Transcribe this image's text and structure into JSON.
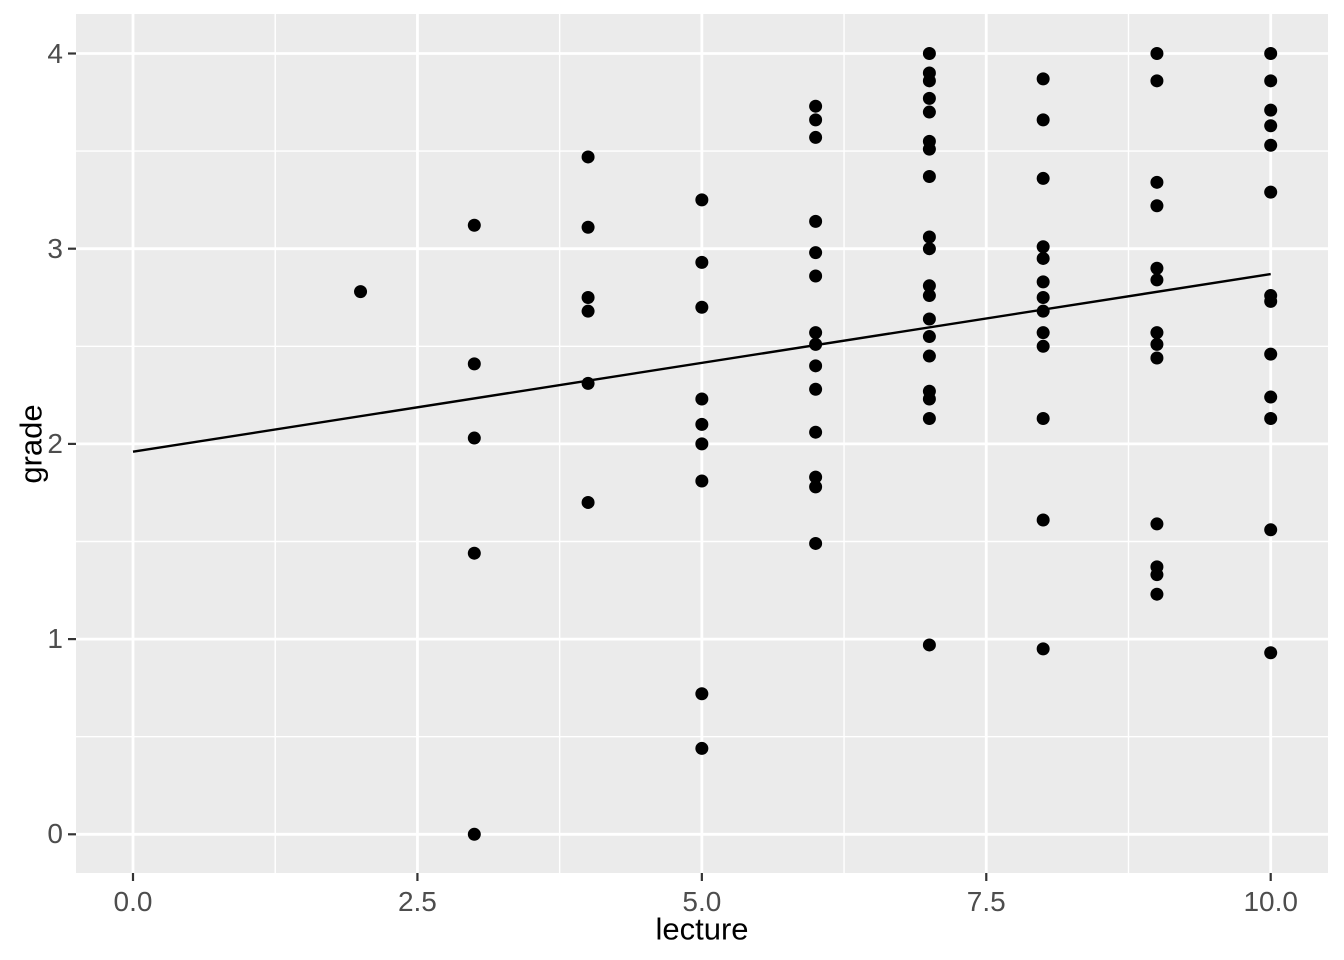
{
  "chart_data": {
    "type": "scatter",
    "title": "",
    "xlabel": "lecture",
    "ylabel": "grade",
    "xlim": [
      -0.5,
      10.5
    ],
    "ylim": [
      -0.2,
      4.2
    ],
    "grid": true,
    "legend": "none",
    "x_ticks": [
      0.0,
      2.5,
      5.0,
      7.5,
      10.0
    ],
    "x_tick_labels": [
      "0.0",
      "2.5",
      "5.0",
      "7.5",
      "10.0"
    ],
    "y_ticks": [
      0,
      1,
      2,
      3,
      4
    ],
    "y_tick_labels": [
      "0",
      "1",
      "2",
      "3",
      "4"
    ],
    "x_minor_gridlines": [
      1.25,
      3.75,
      6.25,
      8.75
    ],
    "y_minor_gridlines": [
      0.5,
      1.5,
      2.5,
      3.5
    ],
    "trend_line": {
      "x1": 0.0,
      "y1": 1.96,
      "x2": 10.0,
      "y2": 2.87
    },
    "points": [
      {
        "x": 2,
        "y": 2.78
      },
      {
        "x": 3,
        "y": 3.12
      },
      {
        "x": 3,
        "y": 2.41
      },
      {
        "x": 3,
        "y": 2.03
      },
      {
        "x": 3,
        "y": 1.44
      },
      {
        "x": 3,
        "y": 0.0
      },
      {
        "x": 4,
        "y": 3.47
      },
      {
        "x": 4,
        "y": 3.11
      },
      {
        "x": 4,
        "y": 2.75
      },
      {
        "x": 4,
        "y": 2.68
      },
      {
        "x": 4,
        "y": 2.31
      },
      {
        "x": 4,
        "y": 1.7
      },
      {
        "x": 5,
        "y": 3.25
      },
      {
        "x": 5,
        "y": 2.93
      },
      {
        "x": 5,
        "y": 2.7
      },
      {
        "x": 5,
        "y": 2.23
      },
      {
        "x": 5,
        "y": 2.1
      },
      {
        "x": 5,
        "y": 2.0
      },
      {
        "x": 5,
        "y": 1.81
      },
      {
        "x": 5,
        "y": 0.72
      },
      {
        "x": 5,
        "y": 0.44
      },
      {
        "x": 6,
        "y": 3.73
      },
      {
        "x": 6,
        "y": 3.66
      },
      {
        "x": 6,
        "y": 3.57
      },
      {
        "x": 6,
        "y": 3.14
      },
      {
        "x": 6,
        "y": 2.98
      },
      {
        "x": 6,
        "y": 2.86
      },
      {
        "x": 6,
        "y": 2.57
      },
      {
        "x": 6,
        "y": 2.51
      },
      {
        "x": 6,
        "y": 2.4
      },
      {
        "x": 6,
        "y": 2.28
      },
      {
        "x": 6,
        "y": 2.06
      },
      {
        "x": 6,
        "y": 1.83
      },
      {
        "x": 6,
        "y": 1.78
      },
      {
        "x": 6,
        "y": 1.49
      },
      {
        "x": 7,
        "y": 4.0
      },
      {
        "x": 7,
        "y": 3.9
      },
      {
        "x": 7,
        "y": 3.86
      },
      {
        "x": 7,
        "y": 3.77
      },
      {
        "x": 7,
        "y": 3.7
      },
      {
        "x": 7,
        "y": 3.55
      },
      {
        "x": 7,
        "y": 3.51
      },
      {
        "x": 7,
        "y": 3.37
      },
      {
        "x": 7,
        "y": 3.06
      },
      {
        "x": 7,
        "y": 3.0
      },
      {
        "x": 7,
        "y": 2.81
      },
      {
        "x": 7,
        "y": 2.76
      },
      {
        "x": 7,
        "y": 2.64
      },
      {
        "x": 7,
        "y": 2.55
      },
      {
        "x": 7,
        "y": 2.45
      },
      {
        "x": 7,
        "y": 2.27
      },
      {
        "x": 7,
        "y": 2.23
      },
      {
        "x": 7,
        "y": 2.13
      },
      {
        "x": 7,
        "y": 0.97
      },
      {
        "x": 8,
        "y": 3.87
      },
      {
        "x": 8,
        "y": 3.66
      },
      {
        "x": 8,
        "y": 3.36
      },
      {
        "x": 8,
        "y": 3.01
      },
      {
        "x": 8,
        "y": 2.95
      },
      {
        "x": 8,
        "y": 2.83
      },
      {
        "x": 8,
        "y": 2.75
      },
      {
        "x": 8,
        "y": 2.68
      },
      {
        "x": 8,
        "y": 2.57
      },
      {
        "x": 8,
        "y": 2.5
      },
      {
        "x": 8,
        "y": 2.13
      },
      {
        "x": 8,
        "y": 1.61
      },
      {
        "x": 8,
        "y": 0.95
      },
      {
        "x": 9,
        "y": 4.0
      },
      {
        "x": 9,
        "y": 3.86
      },
      {
        "x": 9,
        "y": 3.34
      },
      {
        "x": 9,
        "y": 3.22
      },
      {
        "x": 9,
        "y": 2.9
      },
      {
        "x": 9,
        "y": 2.84
      },
      {
        "x": 9,
        "y": 2.57
      },
      {
        "x": 9,
        "y": 2.51
      },
      {
        "x": 9,
        "y": 2.44
      },
      {
        "x": 9,
        "y": 1.59
      },
      {
        "x": 9,
        "y": 1.37
      },
      {
        "x": 9,
        "y": 1.33
      },
      {
        "x": 9,
        "y": 1.23
      },
      {
        "x": 10,
        "y": 4.0
      },
      {
        "x": 10,
        "y": 3.86
      },
      {
        "x": 10,
        "y": 3.71
      },
      {
        "x": 10,
        "y": 3.63
      },
      {
        "x": 10,
        "y": 3.53
      },
      {
        "x": 10,
        "y": 3.29
      },
      {
        "x": 10,
        "y": 2.76
      },
      {
        "x": 10,
        "y": 2.73
      },
      {
        "x": 10,
        "y": 2.46
      },
      {
        "x": 10,
        "y": 2.24
      },
      {
        "x": 10,
        "y": 2.13
      },
      {
        "x": 10,
        "y": 1.56
      },
      {
        "x": 10,
        "y": 0.93
      }
    ],
    "colors": {
      "panel_bg": "#EBEBEB",
      "grid": "#FFFFFF",
      "point": "#000000",
      "trend": "#000000",
      "tick_mark": "#333333",
      "tick_text": "#4D4D4D",
      "axis_title": "#000000"
    }
  }
}
